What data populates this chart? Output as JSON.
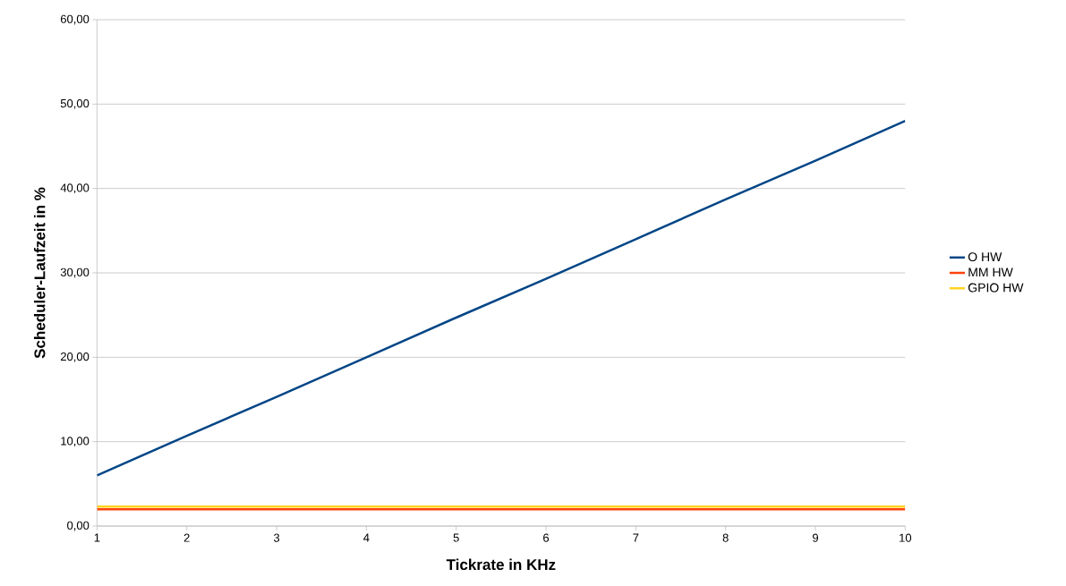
{
  "chart_data": {
    "type": "line",
    "xlabel": "Tickrate in KHz",
    "ylabel": "Scheduler-Laufzeit in %",
    "x": [
      1,
      2,
      3,
      4,
      5,
      6,
      7,
      8,
      9,
      10
    ],
    "series": [
      {
        "name": "O HW",
        "color": "#004586",
        "values": [
          6.0,
          10.7,
          15.3,
          20.0,
          24.7,
          29.3,
          34.0,
          38.7,
          43.3,
          48.0
        ]
      },
      {
        "name": "MM HW",
        "color": "#ff420e",
        "values": [
          2.0,
          2.0,
          2.0,
          2.0,
          2.0,
          2.0,
          2.0,
          2.0,
          2.0,
          2.0
        ]
      },
      {
        "name": "GPIO HW",
        "color": "#ffd320",
        "values": [
          2.3,
          2.3,
          2.3,
          2.3,
          2.3,
          2.3,
          2.3,
          2.3,
          2.3,
          2.3
        ]
      }
    ],
    "xlim": [
      1,
      10
    ],
    "xticks": [
      1,
      2,
      3,
      4,
      5,
      6,
      7,
      8,
      9,
      10
    ],
    "ylim": [
      0,
      60
    ],
    "yticks": [
      {
        "value": 0,
        "label": "0,00"
      },
      {
        "value": 10,
        "label": "10,00"
      },
      {
        "value": 20,
        "label": "20,00"
      },
      {
        "value": 30,
        "label": "30,00"
      },
      {
        "value": 40,
        "label": "40,00"
      },
      {
        "value": 50,
        "label": "50,00"
      },
      {
        "value": 60,
        "label": "60,00"
      }
    ],
    "grid": "y",
    "legend": "right",
    "marker": "none",
    "line_style": "solid"
  }
}
